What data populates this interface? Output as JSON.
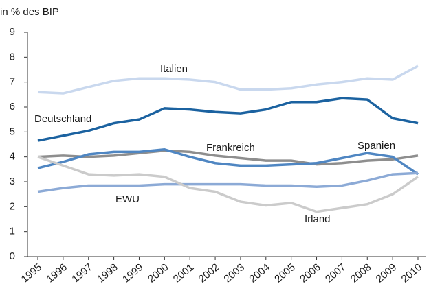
{
  "chart_data": {
    "type": "line",
    "y_label": "in % des BIP",
    "categories": [
      "1995",
      "1996",
      "1997",
      "1998",
      "1999",
      "2000",
      "2001",
      "2002",
      "2003",
      "2004",
      "2005",
      "2006",
      "2007",
      "2008",
      "2009",
      "2010"
    ],
    "ylim": [
      0,
      9
    ],
    "yticks": [
      0,
      1,
      2,
      3,
      4,
      5,
      6,
      7,
      8,
      9
    ],
    "grid": false,
    "series": [
      {
        "name": "Italien",
        "color": "#c9d8ee",
        "values": [
          6.6,
          6.55,
          6.8,
          7.05,
          7.15,
          7.15,
          7.1,
          7.0,
          6.7,
          6.7,
          6.75,
          6.9,
          7.0,
          7.15,
          7.1,
          7.65
        ]
      },
      {
        "name": "Deutschland",
        "color": "#1b62a0",
        "values": [
          4.65,
          4.85,
          5.05,
          5.35,
          5.5,
          5.95,
          5.9,
          5.8,
          5.75,
          5.9,
          6.2,
          6.2,
          6.35,
          6.3,
          5.55,
          5.35
        ]
      },
      {
        "name": "Frankreich",
        "color": "#8e8e8e",
        "values": [
          4.0,
          4.05,
          4.0,
          4.05,
          4.15,
          4.25,
          4.2,
          4.05,
          3.95,
          3.85,
          3.85,
          3.7,
          3.75,
          3.85,
          3.9,
          4.05
        ]
      },
      {
        "name": "Spanien",
        "color": "#4f86c2",
        "values": [
          3.55,
          3.8,
          4.1,
          4.2,
          4.2,
          4.3,
          4.0,
          3.75,
          3.65,
          3.65,
          3.7,
          3.75,
          3.95,
          4.15,
          4.0,
          3.3
        ]
      },
      {
        "name": "EWU",
        "color": "#8caad6",
        "values": [
          2.6,
          2.75,
          2.85,
          2.85,
          2.85,
          2.9,
          2.9,
          2.9,
          2.9,
          2.85,
          2.85,
          2.8,
          2.85,
          3.05,
          3.3,
          3.35
        ]
      },
      {
        "name": "Irland",
        "color": "#cbcbcb",
        "values": [
          4.0,
          3.65,
          3.3,
          3.25,
          3.3,
          3.2,
          2.75,
          2.6,
          2.2,
          2.05,
          2.15,
          1.8,
          1.95,
          2.1,
          2.5,
          3.2
        ]
      }
    ]
  }
}
